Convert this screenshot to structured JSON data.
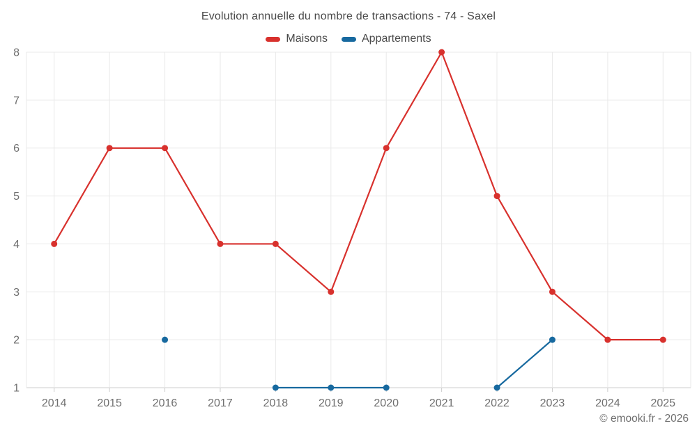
{
  "page": {
    "title": "Evolution annuelle du nombre de transactions - 74 - Saxel",
    "footer": "© emooki.fr - 2026"
  },
  "chart_data": {
    "type": "line",
    "title": "Evolution annuelle du nombre de transactions - 74 - Saxel",
    "categories": [
      "2014",
      "2015",
      "2016",
      "2017",
      "2018",
      "2019",
      "2020",
      "2021",
      "2022",
      "2023",
      "2024",
      "2025"
    ],
    "series": [
      {
        "name": "Maisons",
        "color": "#d8312d",
        "values": [
          4,
          6,
          6,
          4,
          4,
          3,
          6,
          8,
          5,
          3,
          2,
          2
        ]
      },
      {
        "name": "Appartements",
        "color": "#17699f",
        "values": [
          null,
          null,
          2,
          null,
          1,
          1,
          1,
          null,
          1,
          2,
          null,
          null
        ]
      }
    ],
    "xlabel": "",
    "ylabel": "",
    "ylim": [
      1,
      8
    ],
    "yticks": [
      1,
      2,
      3,
      4,
      5,
      6,
      7,
      8
    ],
    "grid": true,
    "legend_position": "top",
    "marker_radius": 4.5
  }
}
